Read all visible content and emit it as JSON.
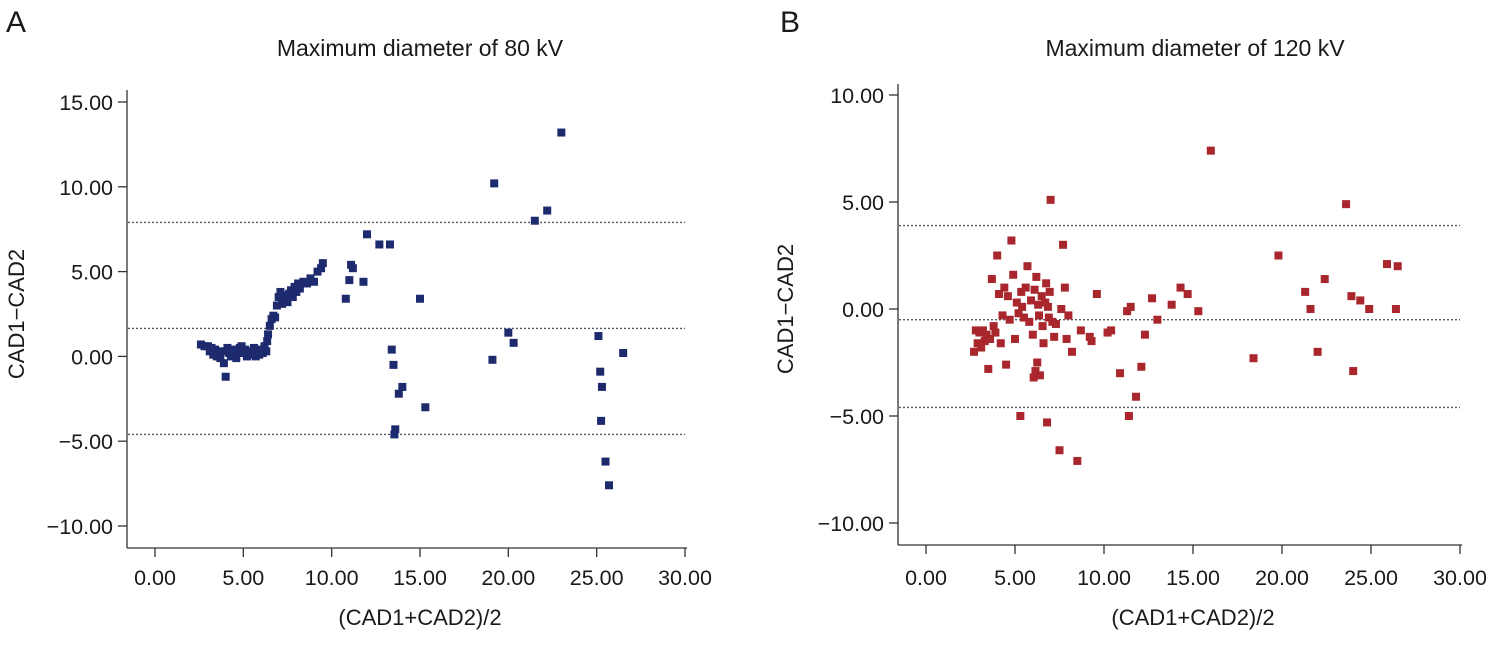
{
  "chart_data": [
    {
      "type": "scatter",
      "panel_label": "A",
      "title": "Maximum diameter of 80 kV",
      "xlabel": "(CAD1+CAD2)/2",
      "ylabel": "CAD1−CAD2",
      "xlim": [
        0,
        30
      ],
      "ylim": [
        -10,
        15
      ],
      "x_ticks": [
        0,
        5,
        10,
        15,
        20,
        25,
        30
      ],
      "x_tick_labels": [
        "0.00",
        "5.00",
        "10.00",
        "15.00",
        "20.00",
        "25.00",
        "30.00"
      ],
      "y_ticks": [
        15,
        10,
        5,
        0,
        -5,
        -10
      ],
      "y_tick_labels": [
        "15.00",
        "10.00",
        "5.00",
        "0.00",
        "−5.00",
        "−10.00"
      ],
      "reference_lines": [
        7.9,
        1.65,
        -4.6
      ],
      "grid": false,
      "marker": "square",
      "color": "#1e2a6e",
      "points": [
        [
          2.6,
          0.7
        ],
        [
          2.8,
          0.6
        ],
        [
          3.0,
          0.6
        ],
        [
          3.1,
          0.3
        ],
        [
          3.2,
          0.5
        ],
        [
          3.3,
          0.1
        ],
        [
          3.4,
          0.4
        ],
        [
          3.5,
          0.0
        ],
        [
          3.6,
          0.2
        ],
        [
          3.7,
          -0.1
        ],
        [
          3.8,
          0.3
        ],
        [
          3.9,
          -0.4
        ],
        [
          4.0,
          -1.2
        ],
        [
          4.1,
          0.5
        ],
        [
          4.2,
          0.2
        ],
        [
          4.3,
          0.0
        ],
        [
          4.4,
          0.4
        ],
        [
          4.5,
          0.1
        ],
        [
          4.6,
          -0.1
        ],
        [
          4.7,
          0.3
        ],
        [
          4.8,
          0.5
        ],
        [
          4.9,
          0.6
        ],
        [
          5.0,
          0.2
        ],
        [
          5.1,
          0.4
        ],
        [
          5.2,
          0.0
        ],
        [
          5.3,
          0.3
        ],
        [
          5.4,
          0.1
        ],
        [
          5.5,
          0.2
        ],
        [
          5.6,
          0.5
        ],
        [
          5.7,
          0.0
        ],
        [
          5.8,
          0.3
        ],
        [
          5.9,
          0.1
        ],
        [
          6.0,
          0.4
        ],
        [
          6.1,
          0.2
        ],
        [
          6.2,
          0.6
        ],
        [
          6.3,
          0.3
        ],
        [
          6.35,
          0.9
        ],
        [
          6.4,
          1.3
        ],
        [
          6.5,
          1.8
        ],
        [
          6.6,
          2.2
        ],
        [
          6.7,
          2.4
        ],
        [
          6.8,
          2.3
        ],
        [
          6.9,
          3.0
        ],
        [
          7.0,
          3.5
        ],
        [
          7.1,
          3.8
        ],
        [
          7.2,
          3.1
        ],
        [
          7.3,
          3.4
        ],
        [
          7.4,
          3.6
        ],
        [
          7.5,
          3.2
        ],
        [
          7.6,
          3.7
        ],
        [
          7.7,
          3.9
        ],
        [
          7.8,
          3.5
        ],
        [
          7.9,
          4.1
        ],
        [
          8.0,
          3.8
        ],
        [
          8.1,
          4.3
        ],
        [
          8.2,
          4.0
        ],
        [
          8.4,
          4.4
        ],
        [
          8.6,
          4.3
        ],
        [
          8.8,
          4.6
        ],
        [
          9.0,
          4.4
        ],
        [
          9.2,
          5.0
        ],
        [
          9.4,
          5.2
        ],
        [
          9.5,
          5.5
        ],
        [
          10.8,
          3.4
        ],
        [
          11.0,
          4.5
        ],
        [
          11.1,
          5.4
        ],
        [
          11.2,
          5.2
        ],
        [
          11.8,
          4.4
        ],
        [
          12.0,
          7.2
        ],
        [
          12.7,
          6.6
        ],
        [
          13.3,
          6.6
        ],
        [
          13.4,
          0.4
        ],
        [
          13.5,
          -0.5
        ],
        [
          13.55,
          -4.6
        ],
        [
          13.6,
          -4.3
        ],
        [
          13.8,
          -2.2
        ],
        [
          14.0,
          -1.8
        ],
        [
          15.0,
          3.4
        ],
        [
          15.3,
          -3.0
        ],
        [
          19.1,
          -0.2
        ],
        [
          19.2,
          10.2
        ],
        [
          20.0,
          1.4
        ],
        [
          20.3,
          0.8
        ],
        [
          21.5,
          8.0
        ],
        [
          22.2,
          8.6
        ],
        [
          23.0,
          13.2
        ],
        [
          25.1,
          1.2
        ],
        [
          25.2,
          -0.9
        ],
        [
          25.25,
          -3.8
        ],
        [
          25.3,
          -1.8
        ],
        [
          25.5,
          -6.2
        ],
        [
          25.7,
          -7.6
        ],
        [
          26.5,
          0.2
        ]
      ]
    },
    {
      "type": "scatter",
      "panel_label": "B",
      "title": "Maximum diameter of 120 kV",
      "xlabel": "(CAD1+CAD2)/2",
      "ylabel": "CAD1−CAD2",
      "xlim": [
        0,
        30
      ],
      "ylim": [
        -10,
        10
      ],
      "x_ticks": [
        0,
        5,
        10,
        15,
        20,
        25,
        30
      ],
      "x_tick_labels": [
        "0.00",
        "5.00",
        "10.00",
        "15.00",
        "20.00",
        "25.00",
        "30.00"
      ],
      "y_ticks": [
        10,
        5,
        0,
        -5,
        -10
      ],
      "y_tick_labels": [
        "10.00",
        "5.00",
        "0.00",
        "−5.00",
        "−10.00"
      ],
      "reference_lines": [
        3.9,
        -0.5,
        -4.6
      ],
      "grid": false,
      "marker": "square",
      "color": "#a8262c",
      "points": [
        [
          2.7,
          -2.0
        ],
        [
          2.8,
          -1.0
        ],
        [
          2.9,
          -1.6
        ],
        [
          3.0,
          -1.1
        ],
        [
          3.1,
          -1.8
        ],
        [
          3.2,
          -1.0
        ],
        [
          3.3,
          -1.5
        ],
        [
          3.4,
          -1.2
        ],
        [
          3.5,
          -2.8
        ],
        [
          3.6,
          -1.4
        ],
        [
          3.7,
          1.4
        ],
        [
          3.8,
          -0.8
        ],
        [
          3.9,
          -1.1
        ],
        [
          4.0,
          2.5
        ],
        [
          4.1,
          0.7
        ],
        [
          4.2,
          -1.6
        ],
        [
          4.3,
          -0.3
        ],
        [
          4.4,
          1.0
        ],
        [
          4.5,
          -2.6
        ],
        [
          4.6,
          0.6
        ],
        [
          4.7,
          -0.5
        ],
        [
          4.8,
          3.2
        ],
        [
          4.9,
          1.6
        ],
        [
          5.0,
          -1.4
        ],
        [
          5.1,
          0.3
        ],
        [
          5.2,
          -0.2
        ],
        [
          5.3,
          -5.0
        ],
        [
          5.35,
          0.8
        ],
        [
          5.4,
          0.1
        ],
        [
          5.5,
          -0.4
        ],
        [
          5.6,
          1.0
        ],
        [
          5.7,
          2.0
        ],
        [
          5.8,
          -0.6
        ],
        [
          5.9,
          0.4
        ],
        [
          6.0,
          -1.2
        ],
        [
          6.05,
          -3.2
        ],
        [
          6.1,
          0.9
        ],
        [
          6.15,
          -2.9
        ],
        [
          6.2,
          1.5
        ],
        [
          6.25,
          -2.5
        ],
        [
          6.3,
          0.2
        ],
        [
          6.35,
          -0.3
        ],
        [
          6.4,
          -3.1
        ],
        [
          6.5,
          0.6
        ],
        [
          6.55,
          -0.8
        ],
        [
          6.6,
          -1.6
        ],
        [
          6.7,
          0.3
        ],
        [
          6.75,
          1.2
        ],
        [
          6.8,
          -5.3
        ],
        [
          6.85,
          0.1
        ],
        [
          6.9,
          -0.4
        ],
        [
          6.95,
          0.8
        ],
        [
          7.0,
          5.1
        ],
        [
          7.1,
          -0.6
        ],
        [
          7.2,
          -1.3
        ],
        [
          7.3,
          -0.7
        ],
        [
          7.5,
          -6.6
        ],
        [
          7.6,
          0.0
        ],
        [
          7.7,
          3.0
        ],
        [
          7.8,
          1.0
        ],
        [
          7.9,
          -1.4
        ],
        [
          8.0,
          -0.3
        ],
        [
          8.2,
          -2.0
        ],
        [
          8.5,
          -7.1
        ],
        [
          8.7,
          -1.0
        ],
        [
          9.2,
          -1.3
        ],
        [
          9.3,
          -1.5
        ],
        [
          9.6,
          0.7
        ],
        [
          10.2,
          -1.1
        ],
        [
          10.4,
          -1.0
        ],
        [
          10.9,
          -3.0
        ],
        [
          11.3,
          -0.1
        ],
        [
          11.4,
          -5.0
        ],
        [
          11.5,
          0.1
        ],
        [
          11.8,
          -4.1
        ],
        [
          12.1,
          -2.7
        ],
        [
          12.3,
          -1.2
        ],
        [
          12.7,
          0.5
        ],
        [
          13.0,
          -0.5
        ],
        [
          13.8,
          0.2
        ],
        [
          14.3,
          1.0
        ],
        [
          14.7,
          0.7
        ],
        [
          15.3,
          -0.1
        ],
        [
          16.0,
          7.4
        ],
        [
          18.4,
          -2.3
        ],
        [
          19.8,
          2.5
        ],
        [
          21.3,
          0.8
        ],
        [
          21.6,
          0.0
        ],
        [
          22.0,
          -2.0
        ],
        [
          22.4,
          1.4
        ],
        [
          23.6,
          4.9
        ],
        [
          23.9,
          0.6
        ],
        [
          24.0,
          -2.9
        ],
        [
          24.4,
          0.4
        ],
        [
          24.9,
          0.0
        ],
        [
          25.9,
          2.1
        ],
        [
          26.4,
          0.0
        ],
        [
          26.5,
          2.0
        ]
      ]
    }
  ]
}
